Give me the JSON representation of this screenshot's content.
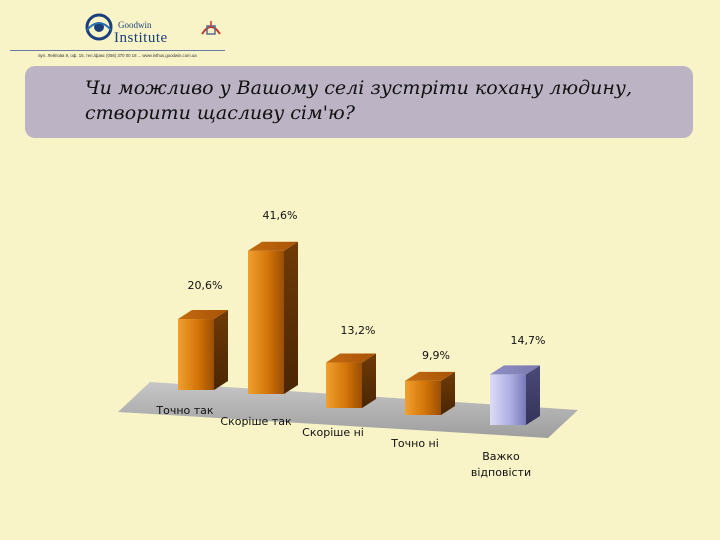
{
  "logo": {
    "brand_small": "Goodwin",
    "brand_big": "Institute",
    "address": "вул. Лейпова 9, оф. 15, тел./факс (056) 370 00 18 ... www.inthus.goodwin.com.ua"
  },
  "title": {
    "line1": "Чи можливо у Вашому селі зустріти кохану людину,",
    "line2": "створити щасливу сім'ю?"
  },
  "colors": {
    "background": "#f8f4c8",
    "title_box": "#bcb3c4",
    "bar_orange": "#d87a10",
    "bar_blue": "#a9a9de",
    "floor": "#b4b4b4"
  },
  "chart_data": {
    "type": "bar",
    "style": "3d",
    "categories": [
      "Точно так",
      "Скоріше так",
      "Скоріше ні",
      "Точно ні",
      "Важко відповісти"
    ],
    "values": [
      20.6,
      41.6,
      13.2,
      9.9,
      14.7
    ],
    "value_labels": [
      "20,6%",
      "41,6%",
      "13,2%",
      "9,9%",
      "14,7%"
    ],
    "category_labels": [
      [
        "Точно так"
      ],
      [
        "Скоріше так"
      ],
      [
        "Скоріше ні"
      ],
      [
        "Точно ні"
      ],
      [
        "Важко",
        "відповісти"
      ]
    ],
    "bar_colors": [
      "orange",
      "orange",
      "orange",
      "orange",
      "blue"
    ],
    "unit": "%",
    "ylim": [
      0,
      45
    ],
    "grid": false,
    "legend": "none"
  }
}
